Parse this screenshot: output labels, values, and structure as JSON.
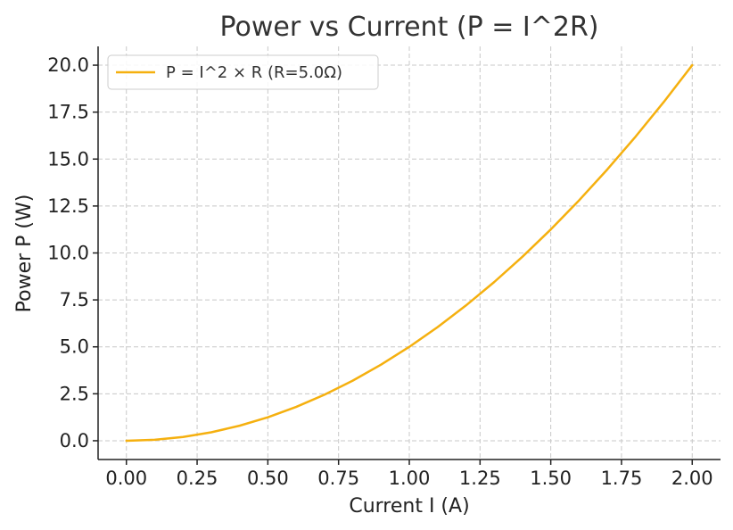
{
  "chart_data": {
    "type": "line",
    "title": "Power vs Current (P = I^2R)",
    "xlabel": "Current I (A)",
    "ylabel": "Power P (W)",
    "xlim": [
      -0.1,
      2.1
    ],
    "ylim": [
      -1.0,
      21.0
    ],
    "x_ticks": [
      0.0,
      0.25,
      0.5,
      0.75,
      1.0,
      1.25,
      1.5,
      1.75,
      2.0
    ],
    "x_tick_labels": [
      "0.00",
      "0.25",
      "0.50",
      "0.75",
      "1.00",
      "1.25",
      "1.50",
      "1.75",
      "2.00"
    ],
    "y_ticks": [
      0.0,
      2.5,
      5.0,
      7.5,
      10.0,
      12.5,
      15.0,
      17.5,
      20.0
    ],
    "y_tick_labels": [
      "0.0",
      "2.5",
      "5.0",
      "7.5",
      "10.0",
      "12.5",
      "15.0",
      "17.5",
      "20.0"
    ],
    "grid": true,
    "legend_position": "top-left",
    "series": [
      {
        "name": "P = I^2 × R (R=5.0Ω)",
        "color": "#F5B00F",
        "x": [
          0.0,
          0.1,
          0.2,
          0.3,
          0.4,
          0.5,
          0.6,
          0.7,
          0.8,
          0.9,
          1.0,
          1.1,
          1.2,
          1.3,
          1.4,
          1.5,
          1.6,
          1.7,
          1.8,
          1.9,
          2.0
        ],
        "y": [
          0.0,
          0.05,
          0.2,
          0.45,
          0.8,
          1.25,
          1.8,
          2.45,
          3.2,
          4.05,
          5.0,
          6.05,
          7.2,
          8.45,
          9.8,
          11.25,
          12.8,
          14.45,
          16.2,
          18.05,
          20.0
        ]
      }
    ]
  }
}
